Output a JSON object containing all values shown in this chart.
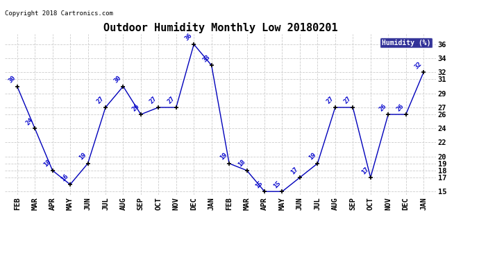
{
  "title": "Outdoor Humidity Monthly Low 20180201",
  "copyright_text": "Copyright 2018 Cartronics.com",
  "legend_label": "Humidity (%)",
  "x_labels": [
    "FEB",
    "MAR",
    "APR",
    "MAY",
    "JUN",
    "JUL",
    "AUG",
    "SEP",
    "OCT",
    "NOV",
    "DEC",
    "JAN",
    "FEB",
    "MAR",
    "APR",
    "MAY",
    "JUN",
    "JUL",
    "AUG",
    "SEP",
    "OCT",
    "NOV",
    "DEC",
    "JAN"
  ],
  "y_values": [
    30,
    24,
    18,
    16,
    19,
    27,
    30,
    26,
    27,
    27,
    36,
    33,
    19,
    18,
    15,
    15,
    17,
    19,
    27,
    27,
    17,
    26,
    26,
    32
  ],
  "line_color": "#0000bb",
  "marker_color": "#000000",
  "label_color": "#0000cc",
  "bg_color": "#ffffff",
  "grid_color": "#cccccc",
  "ylim_min": 14.5,
  "ylim_max": 37.5,
  "yticks": [
    15,
    17,
    18,
    19,
    20,
    22,
    24,
    26,
    27,
    29,
    31,
    32,
    34,
    36
  ],
  "title_fontsize": 11,
  "label_fontsize": 6.5,
  "tick_fontsize": 7.5,
  "legend_bg": "#000080",
  "legend_text_color": "#ffffff"
}
